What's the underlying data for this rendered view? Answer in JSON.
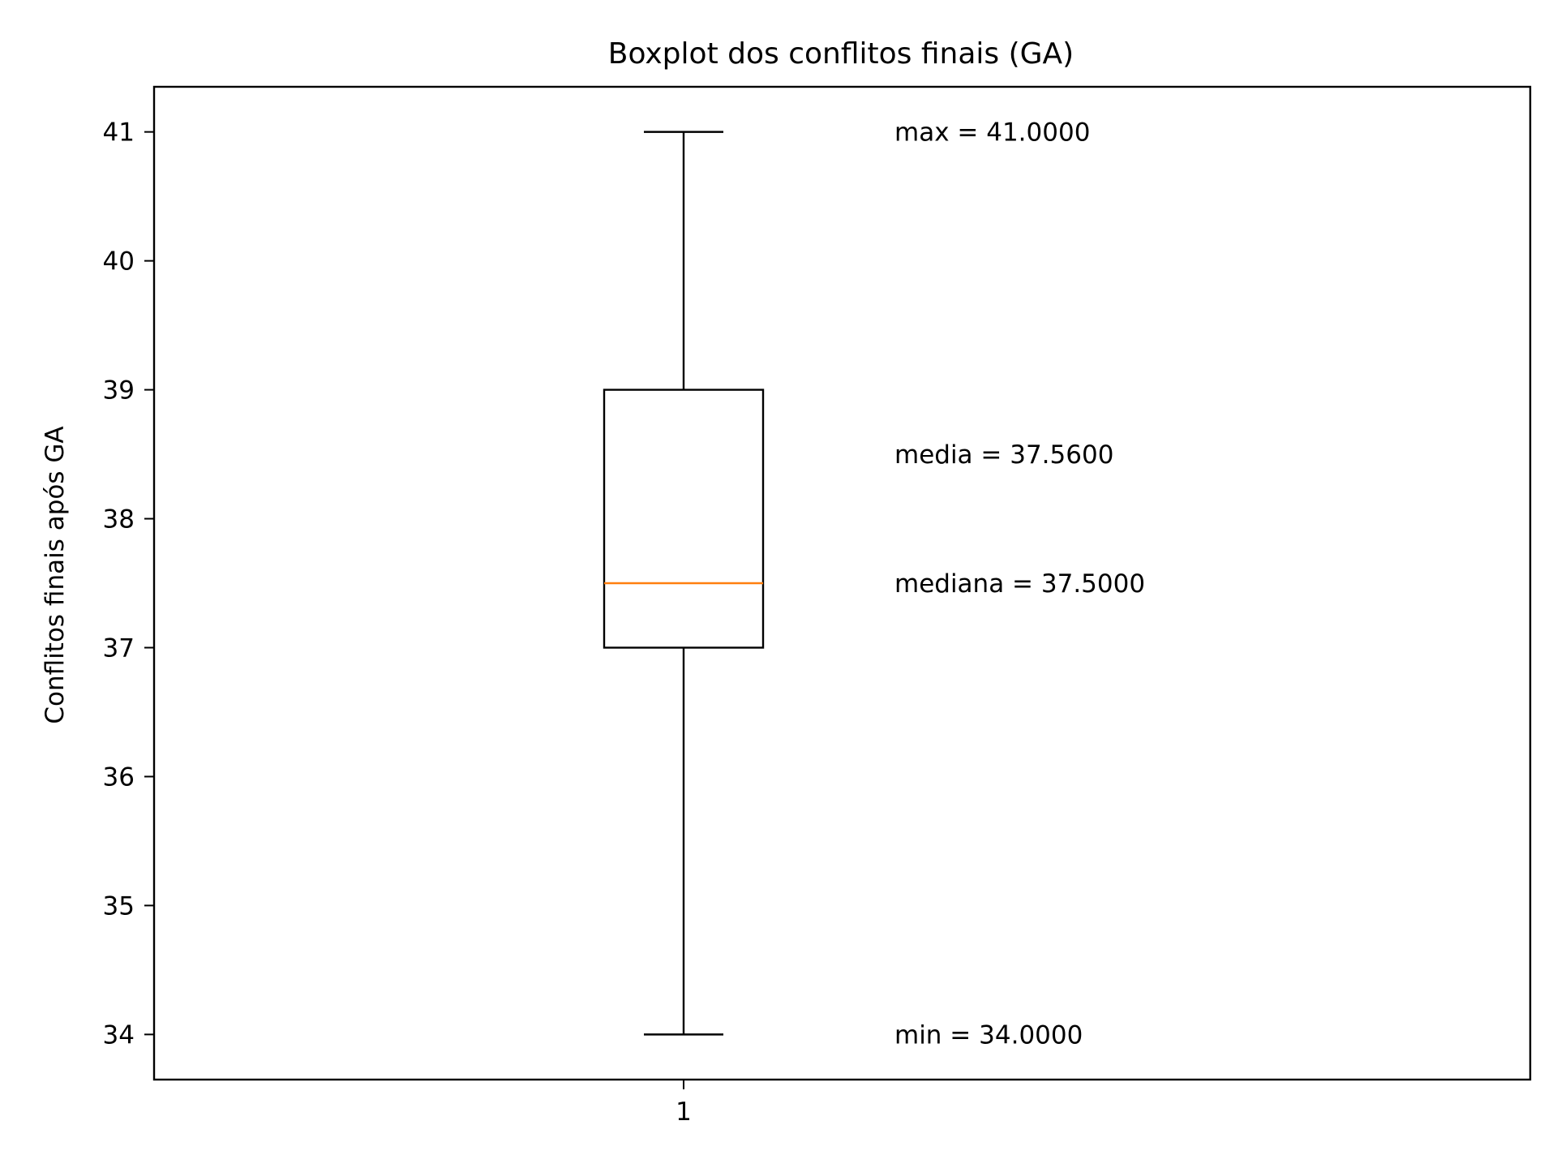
{
  "chart_data": {
    "type": "boxplot",
    "title": "Boxplot dos conflitos finais (GA)",
    "xlabel": "",
    "ylabel": "Conflitos finais após GA",
    "ylim": [
      33.65,
      41.35
    ],
    "yticks": [
      34,
      35,
      36,
      37,
      38,
      39,
      40,
      41
    ],
    "categories": [
      "1"
    ],
    "boxes": [
      {
        "category": "1",
        "whisker_low": 34.0,
        "q1": 37.0,
        "median": 37.5,
        "q3": 39.0,
        "whisker_high": 41.0
      }
    ],
    "annotations": [
      {
        "text": "max = 41.0000",
        "y": 41.0
      },
      {
        "text": "media = 37.5600",
        "y": 38.5
      },
      {
        "text": "mediana = 37.5000",
        "y": 37.5
      },
      {
        "text": "min = 34.0000",
        "y": 34.0
      }
    ],
    "grid": false,
    "legend": "none",
    "colors": {
      "box": "#000000",
      "median": "#ff7f0e",
      "background": "#ffffff"
    }
  }
}
